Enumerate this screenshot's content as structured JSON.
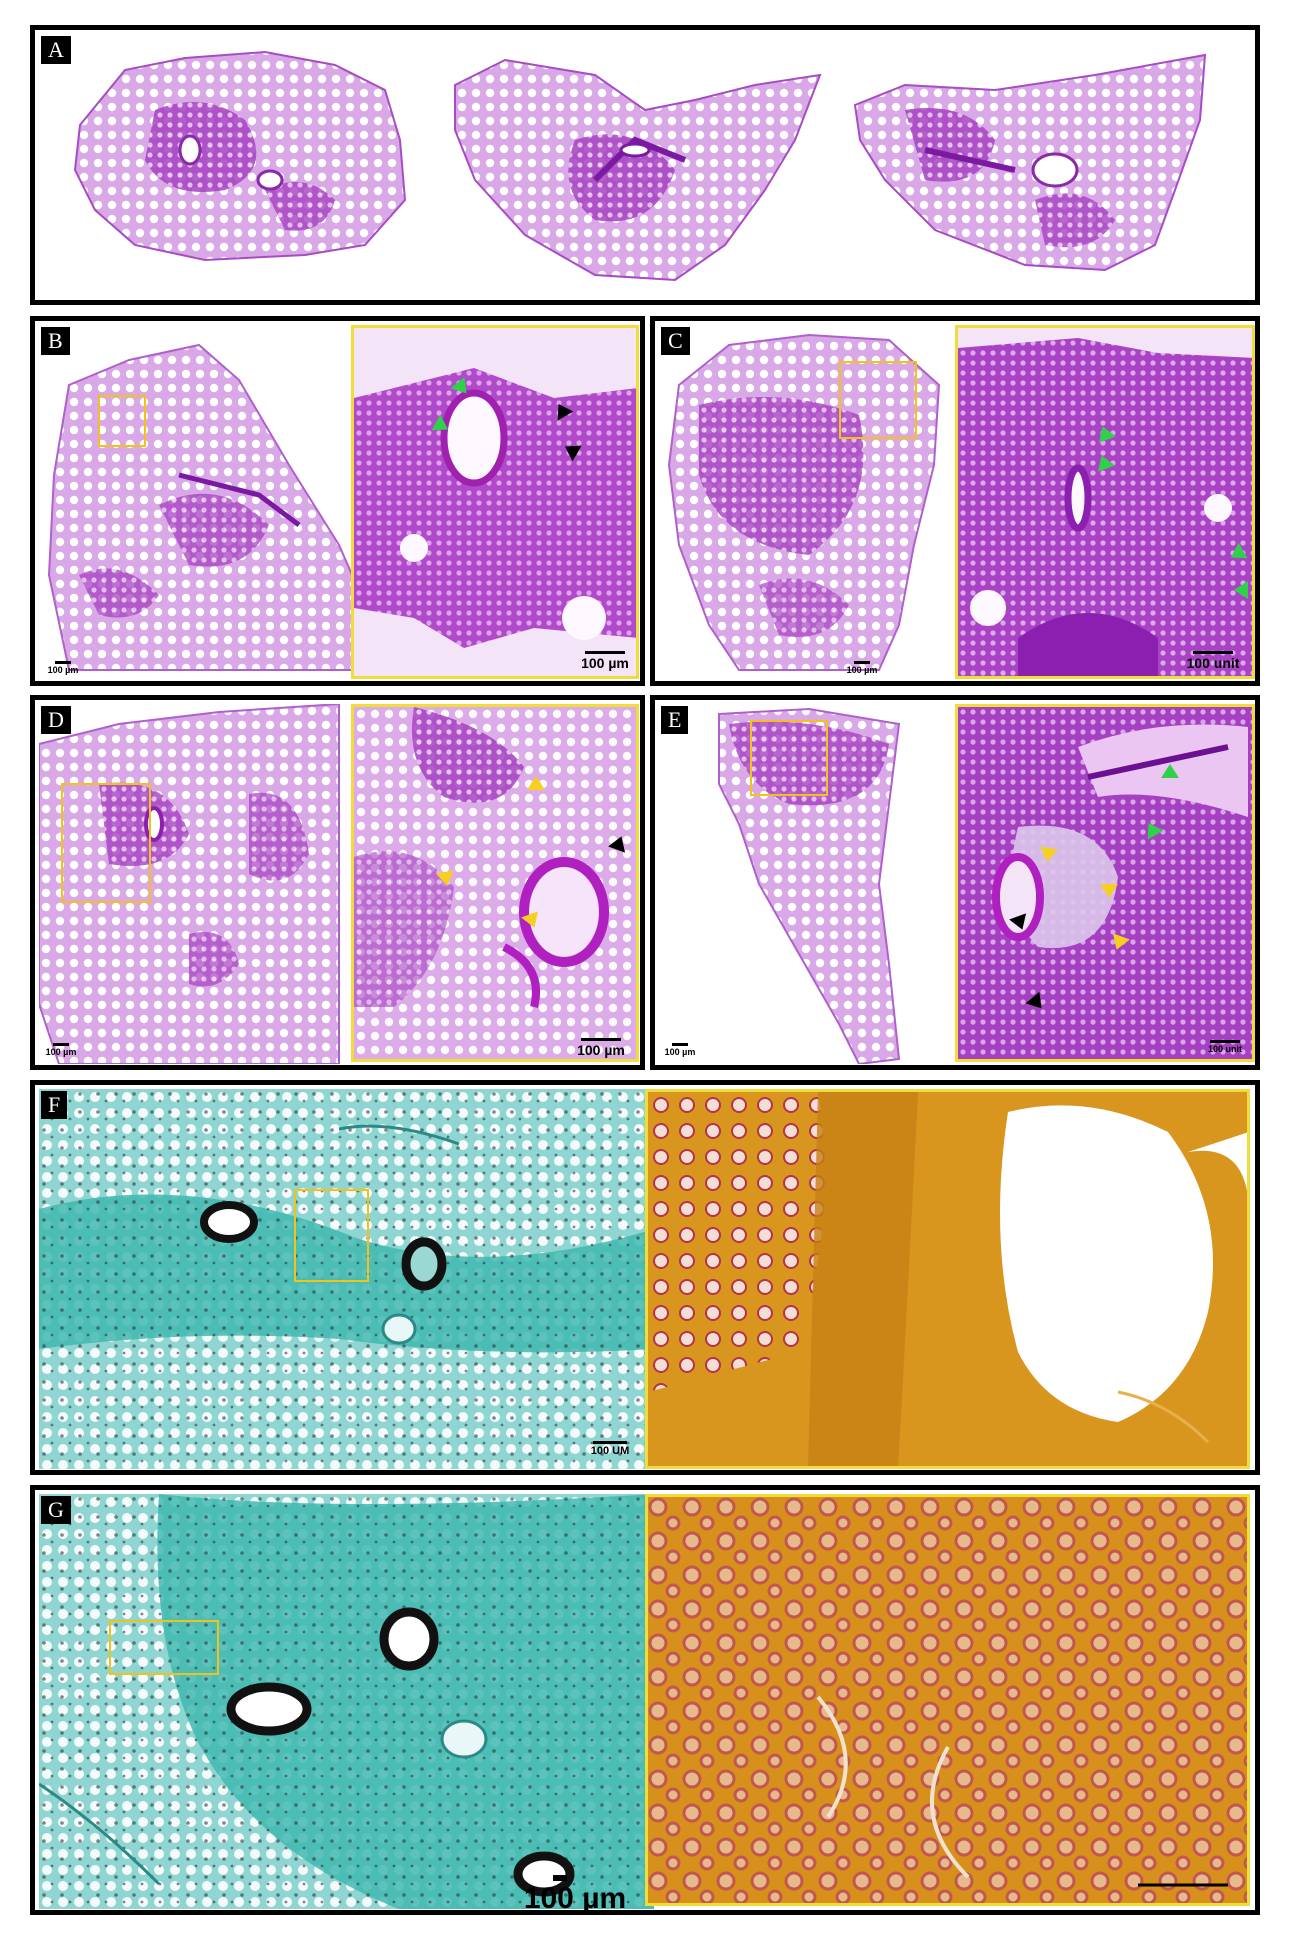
{
  "panels": {
    "A": {
      "label": "A"
    },
    "B": {
      "label": "B",
      "scale_overview": "100 µm",
      "scale_zoom": "100 µm"
    },
    "C": {
      "label": "C",
      "scale_overview": "100 µm",
      "scale_zoom": "100 unit"
    },
    "D": {
      "label": "D",
      "scale_overview": "100 µm",
      "scale_zoom": "100 µm"
    },
    "E": {
      "label": "E",
      "scale_overview": "100 µm",
      "scale_zoom": "100 unit"
    },
    "F": {
      "label": "F",
      "scale_overview": "100 UM"
    },
    "G": {
      "label": "G",
      "scale_overview": "100 µm"
    }
  },
  "colors": {
    "he_stain": "#b03cc8",
    "he_dark": "#7a1aa0",
    "gms_background": "#3fb8b0",
    "gms_zoom_background": "#d9961f",
    "roi_box": "#f2c21a",
    "arrow_green": "#2fd04a",
    "arrow_black": "#000000",
    "arrow_yellow": "#f5d020"
  }
}
